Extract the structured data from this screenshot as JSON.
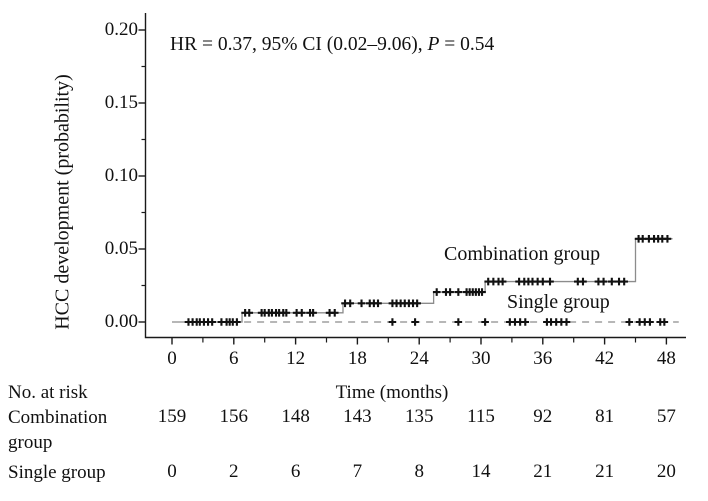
{
  "annotation": {
    "prefix": "HR = 0.37, 95% CI (0.02–9.06), ",
    "p_symbol": "P",
    "suffix": " = 0.54"
  },
  "chart_data": {
    "type": "line",
    "subtype": "kaplan_meier_cumulative_incidence_step",
    "title": "HR = 0.37, 95% CI (0.02–9.06), P = 0.54",
    "xlabel": "Time (months)",
    "ylabel": "HCC development (probability)",
    "xlim": [
      0,
      50
    ],
    "ylim": [
      0,
      0.21
    ],
    "grid": false,
    "x_ticks": [
      0,
      6,
      12,
      18,
      24,
      30,
      36,
      42,
      48
    ],
    "x_minor_ticks": [
      3,
      9,
      15,
      21,
      27,
      33,
      39,
      45
    ],
    "y_ticks": [
      0,
      0.05,
      0.1,
      0.15,
      0.2
    ],
    "y_tick_labels": [
      "0.00",
      "0.05",
      "0.10",
      "0.15",
      "0.20"
    ],
    "y_minor_ticks": [
      0.025,
      0.075,
      0.125,
      0.175
    ],
    "series": [
      {
        "name": "Combination group",
        "line_style": "solid",
        "curve": "step",
        "start_t": 0,
        "end_t": 48.6,
        "steps": [
          {
            "t": 0,
            "p": 0.0
          },
          {
            "t": 6.8,
            "p": 0.0063
          },
          {
            "t": 16.6,
            "p": 0.0128
          },
          {
            "t": 25.4,
            "p": 0.0205
          },
          {
            "t": 30.4,
            "p": 0.0277
          },
          {
            "t": 45.0,
            "p": 0.057
          }
        ],
        "censor_marks": [
          {
            "p": 0.0,
            "t": [
              1.6,
              2.0,
              2.4,
              2.7,
              3.1,
              3.5,
              3.9,
              4.8,
              5.3,
              5.6,
              5.9,
              6.3
            ]
          },
          {
            "p": 0.0063,
            "t": [
              7.1,
              7.5,
              8.7,
              9.0,
              9.4,
              9.7,
              10.1,
              10.4,
              10.8,
              11.1,
              12.1,
              12.6,
              13.4,
              13.7,
              15.3,
              15.8
            ]
          },
          {
            "p": 0.0128,
            "t": [
              16.8,
              17.3,
              18.4,
              19.2,
              19.6,
              20.0,
              21.4,
              21.8,
              22.2,
              22.6,
              23.0,
              23.4,
              23.8
            ]
          },
          {
            "p": 0.0205,
            "t": [
              25.7,
              26.6,
              27.0,
              27.8,
              28.6,
              28.9,
              29.2,
              29.5,
              29.8,
              30.1
            ]
          },
          {
            "p": 0.0277,
            "t": [
              30.7,
              31.2,
              31.7,
              32.1,
              33.7,
              34.2,
              34.6,
              35.0,
              35.5,
              36.0,
              36.7,
              39.4,
              39.9,
              41.4,
              41.9,
              42.7,
              43.4,
              43.9
            ]
          },
          {
            "p": 0.057,
            "t": [
              45.3,
              45.7,
              46.3,
              46.8,
              47.2,
              47.6,
              48.1
            ]
          }
        ]
      },
      {
        "name": "Single group",
        "line_style": "dashed",
        "curve": "flat",
        "start_t": 7.0,
        "end_t": 49.2,
        "level": 0.0,
        "censor_marks": [
          {
            "p": 0.0,
            "t": [
              21.4,
              23.6,
              27.8,
              30.4,
              32.8,
              33.3,
              33.8,
              34.3,
              36.4,
              36.8,
              37.3,
              37.8,
              38.3,
              44.4,
              45.4,
              45.9,
              46.4,
              47.4,
              47.8
            ]
          }
        ]
      }
    ],
    "risk_table": {
      "header": "No. at risk",
      "time_points": [
        0,
        6,
        12,
        18,
        24,
        30,
        36,
        42,
        48
      ],
      "rows": [
        {
          "label": "Combination group",
          "values": [
            159,
            156,
            148,
            143,
            135,
            115,
            92,
            81,
            57
          ]
        },
        {
          "label": "Single group",
          "values": [
            0,
            2,
            6,
            7,
            8,
            14,
            21,
            21,
            20
          ]
        }
      ]
    },
    "colors": {
      "axis": "#1a1a1a",
      "line": "#8c8c8c",
      "marks": "#111111",
      "text": "#111111"
    }
  }
}
